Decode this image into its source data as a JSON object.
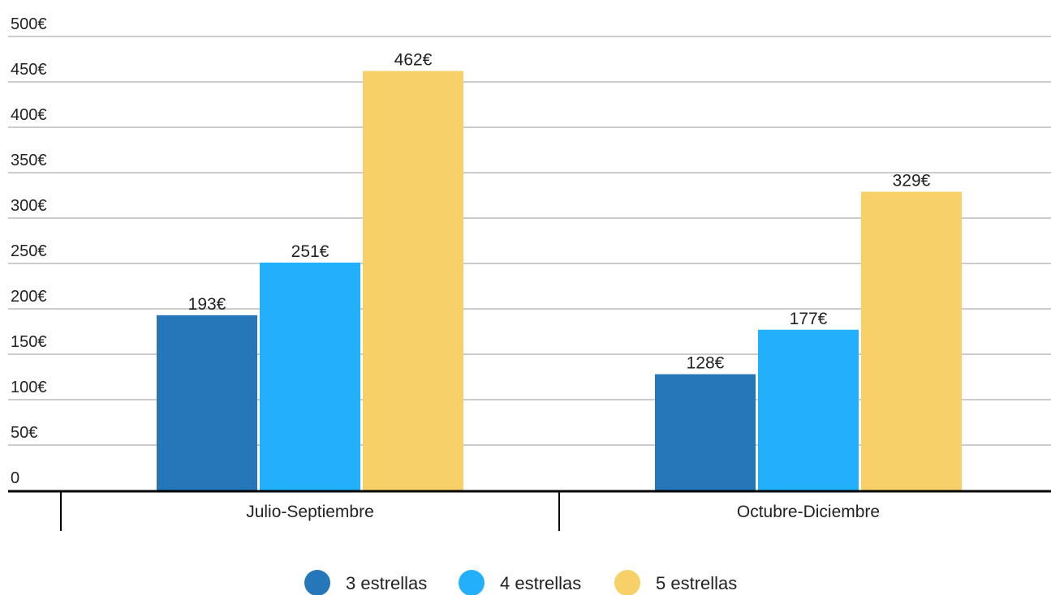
{
  "chart_data": {
    "type": "bar",
    "title": "",
    "xlabel": "",
    "ylabel": "",
    "categories": [
      "Julio-Septiembre",
      "Octubre-Diciembre"
    ],
    "series": [
      {
        "name": "3 estrellas",
        "color": "#2577BA",
        "values": [
          193,
          128
        ],
        "labels": [
          "193€",
          "128€"
        ]
      },
      {
        "name": "4 estrellas",
        "color": "#22AFFB",
        "values": [
          251,
          177
        ],
        "labels": [
          "251€",
          "177€"
        ]
      },
      {
        "name": "5 estrellas",
        "color": "#F8D068",
        "values": [
          462,
          329
        ],
        "labels": [
          "462€",
          "329€"
        ]
      }
    ],
    "ylim": [
      0,
      500
    ],
    "y_ticks": [
      {
        "value": 0,
        "label": "0"
      },
      {
        "value": 50,
        "label": "50€"
      },
      {
        "value": 100,
        "label": "100€"
      },
      {
        "value": 150,
        "label": "150€"
      },
      {
        "value": 200,
        "label": "200€"
      },
      {
        "value": 250,
        "label": "250€"
      },
      {
        "value": 300,
        "label": "300€"
      },
      {
        "value": 350,
        "label": "350€"
      },
      {
        "value": 400,
        "label": "400€"
      },
      {
        "value": 450,
        "label": "450€"
      },
      {
        "value": 500,
        "label": "500€"
      }
    ],
    "grid": true,
    "legend_position": "bottom",
    "gridline_color": "#CCCCCC",
    "axis_color": "#000000"
  }
}
